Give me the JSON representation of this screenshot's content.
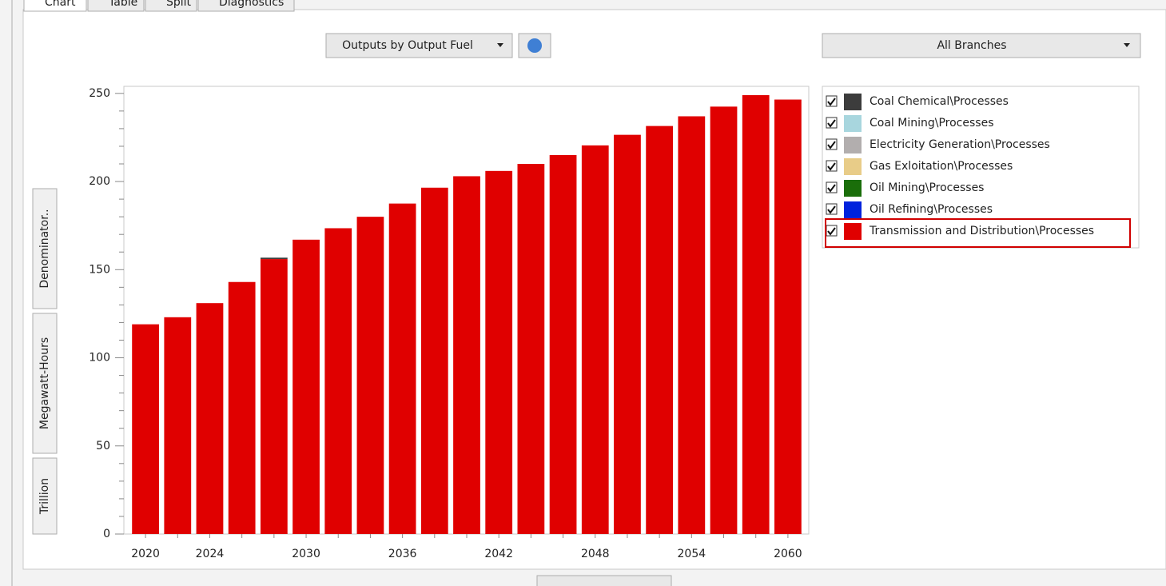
{
  "tabs": [
    "Chart",
    "Table",
    "Split",
    "Diagnostics"
  ],
  "toolbar": {
    "view_select": "Outputs by Output Fuel",
    "branch_select": "All Branches"
  },
  "chart_data": {
    "type": "bar",
    "stacked": true,
    "y_label_parts": [
      "Trillion",
      "Megawatt-Hours",
      "Denominator.."
    ],
    "categories": [
      "2020",
      null,
      "2024",
      null,
      null,
      "2030",
      null,
      null,
      "2036",
      null,
      null,
      "2042",
      null,
      null,
      "2048",
      null,
      null,
      "2054",
      null,
      null,
      "2060"
    ],
    "series": [
      {
        "name": "Coal Chemical\\Processes",
        "color": "#3c3c3c",
        "values": [
          0,
          0,
          0,
          0,
          0.8,
          0,
          0,
          0,
          0,
          0,
          0,
          0,
          0,
          0,
          0,
          0,
          0,
          0,
          0,
          0,
          0
        ]
      },
      {
        "name": "Coal Mining\\Processes",
        "color": "#a8d6de",
        "values": [
          0,
          0,
          0,
          0,
          0,
          0,
          0,
          0,
          0,
          0,
          0,
          0,
          0,
          0,
          0,
          0,
          0,
          0,
          0,
          0,
          0
        ]
      },
      {
        "name": "Electricity Generation\\Processes",
        "color": "#b2aeae",
        "values": [
          0,
          0,
          0,
          0,
          0,
          0,
          0,
          0,
          0,
          0,
          0,
          0,
          0,
          0,
          0,
          0,
          0,
          0,
          0,
          0,
          0
        ]
      },
      {
        "name": "Gas Exloitation\\Processes",
        "color": "#e8cc88",
        "values": [
          0,
          0,
          0,
          0,
          0,
          0,
          0,
          0,
          0,
          0,
          0,
          0,
          0,
          0,
          0,
          0,
          0,
          0,
          0,
          0,
          0
        ]
      },
      {
        "name": "Oil Mining\\Processes",
        "color": "#1a6e0a",
        "values": [
          0,
          0,
          0,
          0,
          0,
          0,
          0,
          0,
          0,
          0,
          0,
          0,
          0,
          0,
          0,
          0,
          0,
          0,
          0,
          0,
          0
        ]
      },
      {
        "name": "Oil Refining\\Processes",
        "color": "#0022dd",
        "values": [
          0,
          0,
          0,
          0,
          0,
          0,
          0,
          0,
          0,
          0,
          0,
          0,
          0,
          0,
          0,
          0,
          0,
          0,
          0,
          0,
          0
        ]
      },
      {
        "name": "Transmission and Distribution\\Processes",
        "color": "#e00000",
        "values": [
          119,
          123,
          131,
          143,
          156,
          167,
          173.5,
          180,
          187.5,
          196.5,
          203,
          206,
          210,
          215,
          220.5,
          226.5,
          231.5,
          237,
          242.5,
          249,
          246.5
        ]
      }
    ],
    "ylim": [
      0,
      254
    ],
    "yticks": [
      0,
      50,
      100,
      150,
      200,
      250
    ],
    "grid": false,
    "legend": "right"
  }
}
